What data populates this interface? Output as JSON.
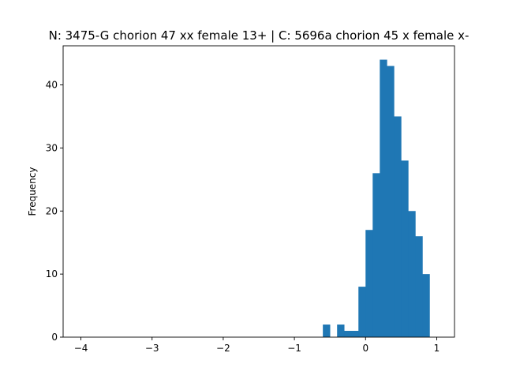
{
  "chart_data": {
    "type": "bar",
    "title": "N: 3475-G chorion 47 xx female 13+ | C: 5696a chorion 45 x female x-",
    "xlabel": "",
    "ylabel": "Frequency",
    "xlim": [
      -4.25,
      1.25
    ],
    "ylim": [
      0,
      46.2
    ],
    "xticks": [
      -4,
      -3,
      -2,
      -1,
      0,
      1
    ],
    "xtick_labels": [
      "−4",
      "−3",
      "−2",
      "−1",
      "0",
      "1"
    ],
    "yticks": [
      0,
      10,
      20,
      30,
      40
    ],
    "ytick_labels": [
      "0",
      "10",
      "20",
      "30",
      "40"
    ],
    "grid": false,
    "color": "#1f77b4",
    "bins": [
      {
        "x0": -0.6,
        "x1": -0.5,
        "count": 2
      },
      {
        "x0": -0.4,
        "x1": -0.3,
        "count": 2
      },
      {
        "x0": -0.3,
        "x1": -0.2,
        "count": 1
      },
      {
        "x0": -0.2,
        "x1": -0.1,
        "count": 1
      },
      {
        "x0": -0.1,
        "x1": 0.0,
        "count": 8
      },
      {
        "x0": 0.0,
        "x1": 0.1,
        "count": 17
      },
      {
        "x0": 0.1,
        "x1": 0.2,
        "count": 26
      },
      {
        "x0": 0.2,
        "x1": 0.3,
        "count": 44
      },
      {
        "x0": 0.3,
        "x1": 0.4,
        "count": 43
      },
      {
        "x0": 0.4,
        "x1": 0.5,
        "count": 35
      },
      {
        "x0": 0.5,
        "x1": 0.6,
        "count": 28
      },
      {
        "x0": 0.6,
        "x1": 0.7,
        "count": 20
      },
      {
        "x0": 0.7,
        "x1": 0.8,
        "count": 16
      },
      {
        "x0": 0.8,
        "x1": 0.9,
        "count": 10
      }
    ]
  }
}
